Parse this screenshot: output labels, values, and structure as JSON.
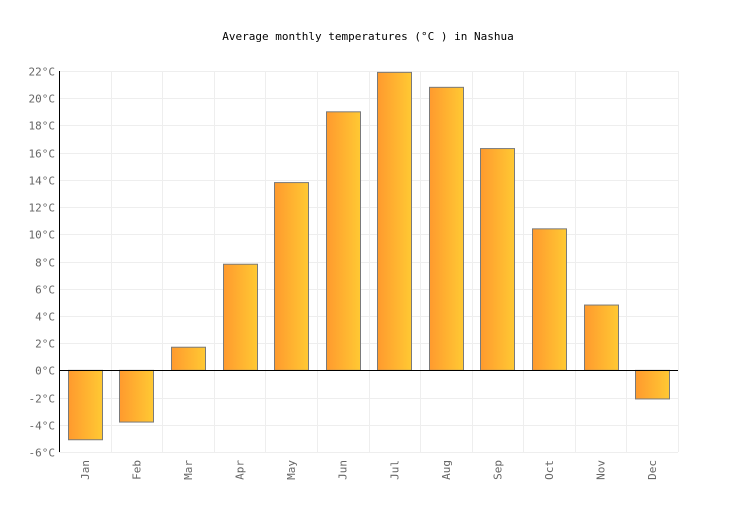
{
  "chart_data": {
    "type": "bar",
    "title": "Average monthly temperatures (°C ) in Nashua",
    "xlabel": "",
    "ylabel": "",
    "categories": [
      "Jan",
      "Feb",
      "Mar",
      "Apr",
      "May",
      "Jun",
      "Jul",
      "Aug",
      "Sep",
      "Oct",
      "Nov",
      "Dec"
    ],
    "values": [
      -5.1,
      -3.8,
      1.7,
      7.8,
      13.8,
      19.0,
      21.9,
      20.8,
      16.3,
      10.4,
      4.8,
      -2.1
    ],
    "ylim": [
      -6,
      22
    ],
    "yticks": [
      -6,
      -4,
      -2,
      0,
      2,
      4,
      6,
      8,
      10,
      12,
      14,
      16,
      18,
      20,
      22
    ],
    "ytick_suffix": "°C",
    "grid": true,
    "legend": "none",
    "colors": {
      "bar_start": "#ff9a2e",
      "bar_end": "#ffc933",
      "bar_border": "#7a7a7a",
      "grid": "#eeeeee",
      "axis": "#000000",
      "tick_text": "#666666"
    }
  }
}
